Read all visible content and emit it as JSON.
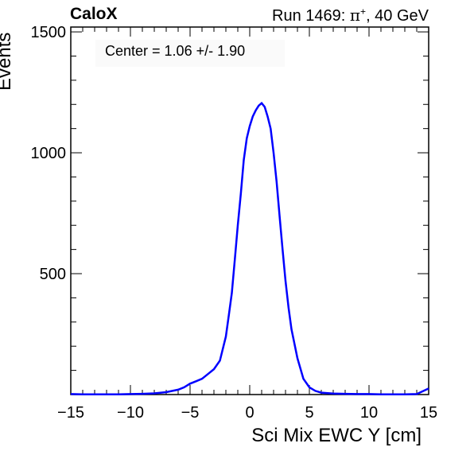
{
  "header": {
    "brand": "CaloX",
    "run_info_prefix": "Run 1469:   ",
    "particle": "π",
    "charge": "+",
    "run_info_suffix": ", 40 GeV"
  },
  "annotation": {
    "center_text": "Center = 1.06 +/- 1.90"
  },
  "chart_data": {
    "type": "line",
    "title": "",
    "xlabel": "Sci Mix EWC Y [cm]",
    "ylabel": "Events",
    "xlim": [
      -15,
      15
    ],
    "ylim": [
      0,
      1520
    ],
    "x_ticks": [
      -15,
      -10,
      -5,
      0,
      5,
      10,
      15
    ],
    "x_tick_labels": [
      "−15",
      "−10",
      "−5",
      "0",
      "5",
      "10",
      "15"
    ],
    "y_ticks": [
      500,
      1000,
      1500
    ],
    "y_tick_labels": [
      "500",
      "1000",
      "1500"
    ],
    "grid": false,
    "line_color": "#0000ff",
    "series": [
      {
        "x": [
          -15,
          -14,
          -13,
          -12,
          -11,
          -10,
          -9,
          -8,
          -7,
          -6,
          -5.5,
          -5,
          -4.5,
          -4,
          -3.5,
          -3,
          -2.5,
          -2,
          -1.75,
          -1.5,
          -1.25,
          -1,
          -0.75,
          -0.5,
          -0.25,
          0,
          0.25,
          0.5,
          0.75,
          1,
          1.25,
          1.5,
          1.75,
          2,
          2.25,
          2.5,
          2.75,
          3,
          3.25,
          3.5,
          4,
          4.5,
          5,
          5.5,
          6,
          7,
          8,
          9,
          10,
          11,
          12,
          13,
          14,
          15
        ],
        "values": [
          2,
          1,
          1,
          1,
          1,
          2,
          3,
          5,
          10,
          20,
          30,
          45,
          55,
          65,
          85,
          105,
          140,
          240,
          330,
          420,
          560,
          700,
          830,
          970,
          1060,
          1110,
          1150,
          1175,
          1195,
          1205,
          1190,
          1150,
          1100,
          1000,
          880,
          740,
          600,
          470,
          360,
          270,
          150,
          65,
          30,
          15,
          8,
          4,
          3,
          2,
          2,
          1,
          1,
          1,
          2,
          25
        ]
      }
    ]
  }
}
